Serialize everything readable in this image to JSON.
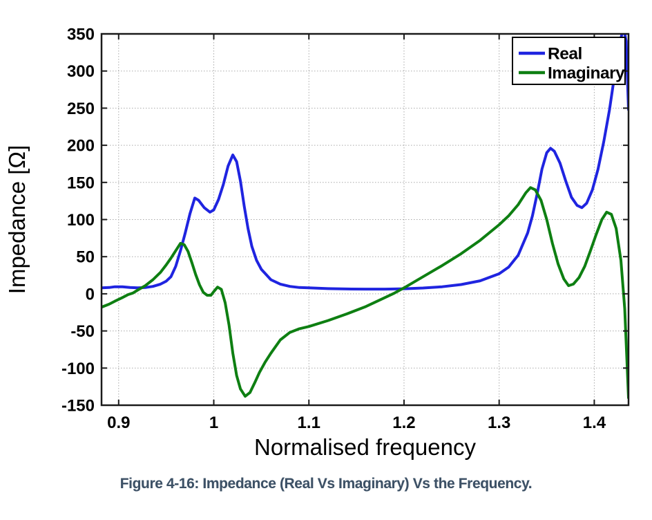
{
  "page": {
    "background": "#ffffff"
  },
  "caption": {
    "text": "Figure 4-16: Impedance (Real Vs Imaginary) Vs the Frequency.",
    "color": "#3d5166"
  },
  "chart_data": {
    "type": "line",
    "title": "",
    "xlabel": "Normalised frequency",
    "ylabel": "Impedance [Ω]",
    "xlim": [
      0.882,
      1.436
    ],
    "ylim": [
      -150,
      350
    ],
    "xticks": [
      0.9,
      1.0,
      1.1,
      1.2,
      1.3,
      1.4
    ],
    "xtick_labels": [
      "0.9",
      "1",
      "1.1",
      "1.2",
      "1.3",
      "1.4"
    ],
    "yticks": [
      -150,
      -100,
      -50,
      0,
      50,
      100,
      150,
      200,
      250,
      300,
      350
    ],
    "ytick_labels": [
      "-150",
      "-100",
      "-50",
      "0",
      "50",
      "100",
      "150",
      "200",
      "250",
      "300",
      "350"
    ],
    "grid": true,
    "grid_style": "dotted",
    "grid_color": "#a9a9a9",
    "axis_color": "#1a1a1a",
    "legend": {
      "position": "top-right",
      "entries": [
        "Real",
        "Imaginary"
      ]
    },
    "series": [
      {
        "name": "Real",
        "color": "#1f24e0",
        "points": [
          [
            0.882,
            8
          ],
          [
            0.89,
            8.5
          ],
          [
            0.896,
            9.5
          ],
          [
            0.904,
            9.5
          ],
          [
            0.912,
            8.5
          ],
          [
            0.92,
            8
          ],
          [
            0.928,
            8.5
          ],
          [
            0.936,
            10
          ],
          [
            0.944,
            13
          ],
          [
            0.95,
            17
          ],
          [
            0.955,
            23
          ],
          [
            0.96,
            37
          ],
          [
            0.965,
            58
          ],
          [
            0.97,
            82
          ],
          [
            0.975,
            108
          ],
          [
            0.98,
            129
          ],
          [
            0.984,
            126
          ],
          [
            0.99,
            116
          ],
          [
            0.996,
            110
          ],
          [
            1.0,
            113
          ],
          [
            1.005,
            127
          ],
          [
            1.01,
            147
          ],
          [
            1.015,
            172
          ],
          [
            1.02,
            187
          ],
          [
            1.024,
            178
          ],
          [
            1.028,
            152
          ],
          [
            1.032,
            118
          ],
          [
            1.036,
            88
          ],
          [
            1.04,
            64
          ],
          [
            1.045,
            45
          ],
          [
            1.05,
            33
          ],
          [
            1.06,
            19
          ],
          [
            1.07,
            13
          ],
          [
            1.08,
            10
          ],
          [
            1.09,
            8.5
          ],
          [
            1.1,
            8
          ],
          [
            1.12,
            7
          ],
          [
            1.14,
            6.5
          ],
          [
            1.16,
            6.3
          ],
          [
            1.18,
            6.3
          ],
          [
            1.2,
            6.8
          ],
          [
            1.22,
            7.8
          ],
          [
            1.24,
            9.5
          ],
          [
            1.26,
            12.5
          ],
          [
            1.28,
            17.5
          ],
          [
            1.3,
            27
          ],
          [
            1.31,
            36
          ],
          [
            1.32,
            52
          ],
          [
            1.33,
            82
          ],
          [
            1.335,
            105
          ],
          [
            1.34,
            135
          ],
          [
            1.345,
            168
          ],
          [
            1.35,
            190
          ],
          [
            1.354,
            196
          ],
          [
            1.358,
            192
          ],
          [
            1.364,
            176
          ],
          [
            1.37,
            152
          ],
          [
            1.376,
            130
          ],
          [
            1.382,
            119
          ],
          [
            1.387,
            116
          ],
          [
            1.392,
            122
          ],
          [
            1.398,
            140
          ],
          [
            1.404,
            168
          ],
          [
            1.41,
            205
          ],
          [
            1.416,
            248
          ],
          [
            1.422,
            300
          ],
          [
            1.427,
            340
          ],
          [
            1.431,
            358
          ],
          [
            1.4335,
            340
          ],
          [
            1.436,
            248
          ]
        ]
      },
      {
        "name": "Imaginary",
        "color": "#0e7f12",
        "points": [
          [
            0.882,
            -18
          ],
          [
            0.89,
            -14
          ],
          [
            0.896,
            -10
          ],
          [
            0.904,
            -5
          ],
          [
            0.91,
            -1
          ],
          [
            0.915,
            1
          ],
          [
            0.92,
            5
          ],
          [
            0.928,
            11
          ],
          [
            0.936,
            19
          ],
          [
            0.944,
            29
          ],
          [
            0.95,
            39
          ],
          [
            0.955,
            48
          ],
          [
            0.96,
            58
          ],
          [
            0.965,
            68
          ],
          [
            0.969,
            66
          ],
          [
            0.973,
            57
          ],
          [
            0.977,
            42
          ],
          [
            0.981,
            26
          ],
          [
            0.985,
            12
          ],
          [
            0.989,
            2
          ],
          [
            0.993,
            -2
          ],
          [
            0.997,
            -2
          ],
          [
            1.0,
            3
          ],
          [
            1.004,
            9
          ],
          [
            1.008,
            6
          ],
          [
            1.012,
            -12
          ],
          [
            1.016,
            -42
          ],
          [
            1.02,
            -80
          ],
          [
            1.024,
            -110
          ],
          [
            1.028,
            -128
          ],
          [
            1.033,
            -138
          ],
          [
            1.038,
            -133
          ],
          [
            1.043,
            -120
          ],
          [
            1.048,
            -106
          ],
          [
            1.054,
            -92
          ],
          [
            1.06,
            -80
          ],
          [
            1.07,
            -62
          ],
          [
            1.08,
            -52
          ],
          [
            1.09,
            -47
          ],
          [
            1.1,
            -44
          ],
          [
            1.12,
            -36
          ],
          [
            1.14,
            -27
          ],
          [
            1.16,
            -17
          ],
          [
            1.18,
            -5
          ],
          [
            1.19,
            1
          ],
          [
            1.2,
            8
          ],
          [
            1.22,
            23
          ],
          [
            1.24,
            38
          ],
          [
            1.26,
            54
          ],
          [
            1.28,
            72
          ],
          [
            1.3,
            93
          ],
          [
            1.31,
            105
          ],
          [
            1.32,
            120
          ],
          [
            1.328,
            136
          ],
          [
            1.333,
            143
          ],
          [
            1.338,
            140
          ],
          [
            1.344,
            126
          ],
          [
            1.35,
            100
          ],
          [
            1.356,
            68
          ],
          [
            1.362,
            40
          ],
          [
            1.368,
            20
          ],
          [
            1.373,
            11
          ],
          [
            1.378,
            13
          ],
          [
            1.384,
            22
          ],
          [
            1.39,
            37
          ],
          [
            1.396,
            58
          ],
          [
            1.402,
            80
          ],
          [
            1.408,
            100
          ],
          [
            1.413,
            110
          ],
          [
            1.418,
            107
          ],
          [
            1.423,
            88
          ],
          [
            1.428,
            45
          ],
          [
            1.432,
            -20
          ],
          [
            1.436,
            -140
          ]
        ]
      }
    ]
  }
}
